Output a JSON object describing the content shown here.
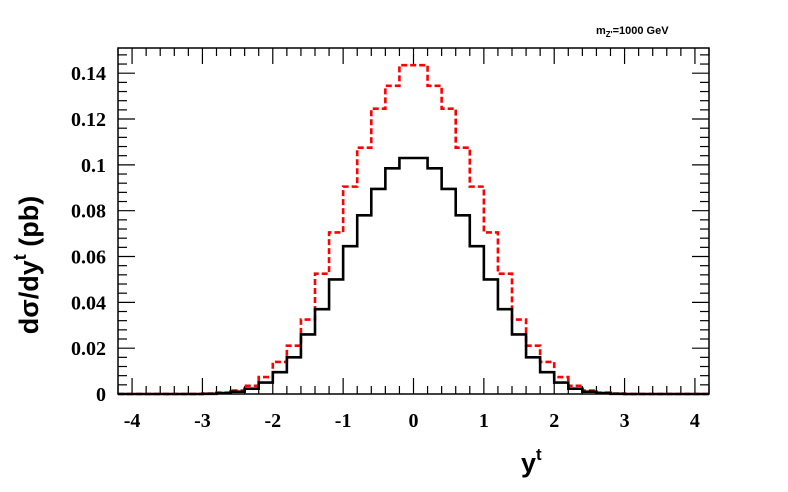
{
  "annotation": {
    "main": "m",
    "sub1": "Z'",
    "rest": "=1000 GeV"
  },
  "axes": {
    "ylabel_main": "dσ/dy",
    "ylabel_sup": "t",
    "ylabel_unit": " (pb)",
    "xlabel_main": "y",
    "xlabel_sup": "t"
  },
  "chart_data": {
    "type": "line",
    "title": "",
    "xlim": [
      -4.2,
      4.2
    ],
    "ylim": [
      0,
      0.151
    ],
    "xticks": [
      "-4",
      "-3",
      "-2",
      "-1",
      "0",
      "1",
      "2",
      "3",
      "4"
    ],
    "yticks": [
      "0",
      "0.02",
      "0.04",
      "0.06",
      "0.08",
      "0.1",
      "0.12",
      "0.14"
    ],
    "bin_edges": [
      -4.2,
      -4.0,
      -3.8,
      -3.6,
      -3.4,
      -3.2,
      -3.0,
      -2.8,
      -2.6,
      -2.4,
      -2.2,
      -2.0,
      -1.8,
      -1.6,
      -1.4,
      -1.2,
      -1.0,
      -0.8,
      -0.6,
      -0.4,
      -0.2,
      0.0,
      0.2,
      0.4,
      0.6,
      0.8,
      1.0,
      1.2,
      1.4,
      1.6,
      1.8,
      2.0,
      2.2,
      2.4,
      2.6,
      2.8,
      3.0,
      3.2,
      3.4,
      3.6,
      3.8,
      4.0,
      4.2
    ],
    "series": [
      {
        "color": "#ff0000",
        "style": "dashed",
        "values": [
          0,
          0,
          0,
          0,
          0,
          0,
          0.0002,
          0.0006,
          0.0015,
          0.0036,
          0.0074,
          0.014,
          0.0211,
          0.0325,
          0.0525,
          0.0705,
          0.0905,
          0.1075,
          0.1245,
          0.1345,
          0.1435,
          0.1435,
          0.1345,
          0.1245,
          0.1075,
          0.0905,
          0.0705,
          0.0525,
          0.0325,
          0.0211,
          0.014,
          0.0074,
          0.0036,
          0.0015,
          0.0006,
          0.0002,
          0,
          0,
          0,
          0,
          0,
          0
        ]
      },
      {
        "color": "#000000",
        "style": "solid",
        "values": [
          0,
          0,
          0,
          0,
          0,
          0,
          0.0001,
          0.0004,
          0.001,
          0.0023,
          0.005,
          0.0095,
          0.016,
          0.026,
          0.037,
          0.05,
          0.0645,
          0.078,
          0.0895,
          0.0985,
          0.103,
          0.103,
          0.0985,
          0.0895,
          0.078,
          0.0645,
          0.05,
          0.037,
          0.026,
          0.016,
          0.0095,
          0.005,
          0.0023,
          0.001,
          0.0004,
          0.0001,
          0,
          0,
          0,
          0,
          0,
          0
        ]
      }
    ]
  }
}
